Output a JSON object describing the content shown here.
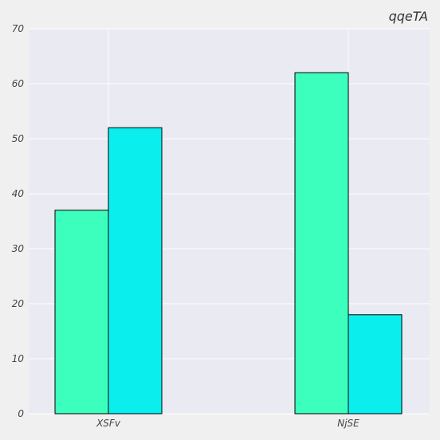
{
  "chart_data": {
    "type": "bar",
    "title": "qqeTA",
    "xlabel": "",
    "ylabel": "",
    "categories": [
      "XSFv",
      "NjSE"
    ],
    "series": [
      {
        "values": [
          37,
          62
        ],
        "color": "#3cffbe"
      },
      {
        "values": [
          52,
          18
        ],
        "color": "#0aeeee"
      }
    ],
    "ylim": [
      0,
      70
    ],
    "yticks": [
      0,
      10,
      20,
      30,
      40,
      50,
      60,
      70
    ],
    "grid": true,
    "background": "#eaeaf2",
    "edge_color": "#000000"
  }
}
